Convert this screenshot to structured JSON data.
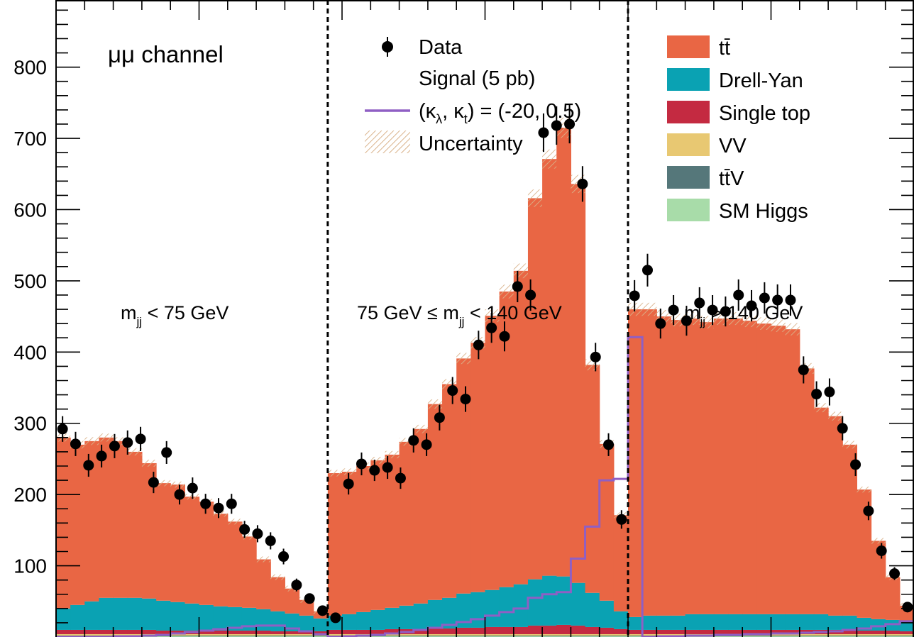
{
  "chart_data": {
    "type": "bar",
    "stacked": true,
    "title": "",
    "xlabel": "",
    "ylabel": "",
    "ylim": [
      0,
      880
    ],
    "yticks": [
      100,
      200,
      300,
      400,
      500,
      600,
      700,
      800
    ],
    "grid": false,
    "channel_label": "μμ channel",
    "regions": [
      {
        "label_main": "m",
        "label_sub": "jj",
        "label_rest": " < 75 GeV"
      },
      {
        "label_pre": "75 GeV ≤ m",
        "label_sub": "jj",
        "label_rest": " < 140 GeV"
      },
      {
        "label_main": "m",
        "label_sub": "jj",
        "label_rest": " > 140 GeV"
      }
    ],
    "legend": {
      "data": "Data",
      "signal_title": "Signal (5 pb)",
      "signal_line": "(κ_λ, κ_t) = (-20, 0.5)",
      "uncertainty": "Uncertainty",
      "backgrounds": [
        "tt̄",
        "Drell-Yan",
        "Single top",
        "VV",
        "tt̄V",
        "SM Higgs"
      ]
    },
    "colors": {
      "ttbar": "#e96644",
      "dy": "#0aa2b3",
      "singletop": "#c42a41",
      "vv": "#e8c872",
      "ttv": "#55777a",
      "higgs": "#a8dca9",
      "signal": "#8f5fc4",
      "uncertainty": "#d9b28a",
      "data": "#000000"
    },
    "series": [
      {
        "name": "tt̄",
        "values": [
          240,
          225,
          225,
          225,
          220,
          205,
          190,
          165,
          165,
          150,
          145,
          130,
          120,
          100,
          70,
          48,
          35,
          22,
          10,
          200,
          200,
          205,
          210,
          215,
          230,
          245,
          275,
          300,
          330,
          350,
          385,
          415,
          440,
          535,
          585,
          630,
          560,
          320,
          220,
          135,
          432,
          430,
          420,
          415,
          415,
          410,
          415,
          415,
          412,
          408,
          405,
          400,
          345,
          290,
          280,
          240,
          180,
          110,
          60,
          22
        ]
      },
      {
        "name": "Drell-Yan",
        "values": [
          30,
          35,
          40,
          45,
          45,
          45,
          44,
          42,
          40,
          38,
          36,
          34,
          33,
          32,
          30,
          28,
          25,
          22,
          18,
          20,
          22,
          25,
          28,
          30,
          33,
          36,
          40,
          43,
          48,
          50,
          52,
          56,
          60,
          65,
          70,
          68,
          60,
          48,
          38,
          25,
          18,
          20,
          20,
          20,
          22,
          22,
          22,
          22,
          22,
          22,
          22,
          22,
          22,
          22,
          20,
          20,
          18,
          16,
          15,
          14
        ]
      },
      {
        "name": "Single top",
        "values": [
          6,
          6,
          6,
          6,
          6,
          6,
          6,
          5,
          5,
          5,
          5,
          5,
          5,
          5,
          5,
          4,
          4,
          4,
          4,
          6,
          6,
          6,
          6,
          7,
          7,
          7,
          8,
          8,
          9,
          9,
          10,
          10,
          10,
          12,
          12,
          13,
          12,
          10,
          9,
          7,
          6,
          6,
          6,
          6,
          6,
          6,
          6,
          6,
          6,
          6,
          6,
          6,
          6,
          6,
          6,
          6,
          5,
          5,
          5,
          4
        ]
      },
      {
        "name": "VV",
        "values": [
          2,
          2,
          2,
          2,
          2,
          2,
          2,
          2,
          2,
          2,
          2,
          2,
          2,
          2,
          2,
          2,
          2,
          2,
          2,
          2,
          2,
          2,
          2,
          2,
          2,
          2,
          2,
          2,
          2,
          2,
          2,
          2,
          2,
          2,
          2,
          2,
          2,
          2,
          2,
          2,
          2,
          2,
          2,
          2,
          2,
          2,
          2,
          2,
          2,
          2,
          2,
          2,
          2,
          2,
          2,
          2,
          2,
          2,
          2,
          2
        ]
      },
      {
        "name": "tt̄V",
        "values": [
          1,
          1,
          1,
          1,
          1,
          1,
          1,
          1,
          1,
          1,
          1,
          1,
          1,
          1,
          1,
          1,
          1,
          1,
          1,
          1,
          1,
          1,
          1,
          1,
          1,
          1,
          1,
          1,
          1,
          1,
          1,
          1,
          1,
          1,
          1,
          1,
          1,
          1,
          1,
          1,
          1,
          1,
          1,
          1,
          1,
          1,
          1,
          1,
          1,
          1,
          1,
          1,
          1,
          1,
          1,
          1,
          1,
          1,
          1,
          1
        ]
      },
      {
        "name": "SM Higgs",
        "values": [
          1,
          1,
          1,
          1,
          1,
          1,
          1,
          1,
          1,
          1,
          1,
          1,
          1,
          1,
          1,
          1,
          1,
          1,
          1,
          1,
          1,
          1,
          1,
          1,
          1,
          1,
          1,
          1,
          1,
          1,
          1,
          1,
          1,
          1,
          1,
          1,
          1,
          1,
          1,
          1,
          1,
          1,
          1,
          1,
          1,
          1,
          1,
          1,
          1,
          1,
          1,
          1,
          1,
          1,
          1,
          1,
          1,
          1,
          1,
          1
        ]
      }
    ],
    "signal": [
      0,
      0,
      0,
      0,
      1,
      1,
      2,
      3,
      5,
      7,
      9,
      11,
      13,
      15,
      16,
      16,
      12,
      8,
      4,
      0,
      1,
      2,
      3,
      5,
      7,
      10,
      13,
      17,
      21,
      25,
      30,
      35,
      40,
      55,
      60,
      63,
      110,
      155,
      220,
      222,
      421,
      0,
      1,
      1,
      2,
      2,
      3,
      3,
      4,
      4,
      5,
      5,
      6,
      7,
      8,
      10,
      12,
      15,
      18,
      22
    ],
    "data_points": [
      {
        "x": 1,
        "y": 292,
        "err": 18
      },
      {
        "x": 2,
        "y": 271,
        "err": 17
      },
      {
        "x": 3,
        "y": 241,
        "err": 16
      },
      {
        "x": 4,
        "y": 254,
        "err": 16
      },
      {
        "x": 5,
        "y": 268,
        "err": 17
      },
      {
        "x": 6,
        "y": 273,
        "err": 17
      },
      {
        "x": 7,
        "y": 278,
        "err": 17
      },
      {
        "x": 8,
        "y": 217,
        "err": 15
      },
      {
        "x": 9,
        "y": 259,
        "err": 16
      },
      {
        "x": 10,
        "y": 200,
        "err": 14
      },
      {
        "x": 11,
        "y": 209,
        "err": 15
      },
      {
        "x": 12,
        "y": 187,
        "err": 14
      },
      {
        "x": 13,
        "y": 181,
        "err": 14
      },
      {
        "x": 14,
        "y": 187,
        "err": 14
      },
      {
        "x": 15,
        "y": 151,
        "err": 12
      },
      {
        "x": 16,
        "y": 145,
        "err": 12
      },
      {
        "x": 17,
        "y": 135,
        "err": 12
      },
      {
        "x": 18,
        "y": 113,
        "err": 11
      },
      {
        "x": 19,
        "y": 73,
        "err": 9
      },
      {
        "x": 20,
        "y": 54,
        "err": 7
      },
      {
        "x": 21,
        "y": 37,
        "err": 6
      },
      {
        "x": 22,
        "y": 27,
        "err": 5
      },
      {
        "x": 23,
        "y": 215,
        "err": 15
      },
      {
        "x": 24,
        "y": 243,
        "err": 16
      },
      {
        "x": 25,
        "y": 234,
        "err": 15
      },
      {
        "x": 26,
        "y": 238,
        "err": 16
      },
      {
        "x": 27,
        "y": 223,
        "err": 15
      },
      {
        "x": 28,
        "y": 276,
        "err": 17
      },
      {
        "x": 29,
        "y": 270,
        "err": 16
      },
      {
        "x": 30,
        "y": 308,
        "err": 18
      },
      {
        "x": 31,
        "y": 346,
        "err": 19
      },
      {
        "x": 32,
        "y": 334,
        "err": 18
      },
      {
        "x": 33,
        "y": 410,
        "err": 20
      },
      {
        "x": 34,
        "y": 434,
        "err": 21
      },
      {
        "x": 35,
        "y": 422,
        "err": 21
      },
      {
        "x": 36,
        "y": 492,
        "err": 22
      },
      {
        "x": 37,
        "y": 480,
        "err": 22
      },
      {
        "x": 38,
        "y": 708,
        "err": 27
      },
      {
        "x": 39,
        "y": 718,
        "err": 27
      },
      {
        "x": 40,
        "y": 720,
        "err": 27
      },
      {
        "x": 41,
        "y": 636,
        "err": 25
      },
      {
        "x": 42,
        "y": 393,
        "err": 20
      },
      {
        "x": 43,
        "y": 270,
        "err": 16
      },
      {
        "x": 44,
        "y": 165,
        "err": 13
      },
      {
        "x": 45,
        "y": 479,
        "err": 22
      },
      {
        "x": 46,
        "y": 515,
        "err": 23
      },
      {
        "x": 47,
        "y": 440,
        "err": 21
      },
      {
        "x": 48,
        "y": 459,
        "err": 21
      },
      {
        "x": 49,
        "y": 444,
        "err": 21
      },
      {
        "x": 50,
        "y": 469,
        "err": 22
      },
      {
        "x": 51,
        "y": 459,
        "err": 21
      },
      {
        "x": 52,
        "y": 457,
        "err": 21
      },
      {
        "x": 53,
        "y": 480,
        "err": 22
      },
      {
        "x": 54,
        "y": 465,
        "err": 22
      },
      {
        "x": 55,
        "y": 476,
        "err": 22
      },
      {
        "x": 56,
        "y": 473,
        "err": 22
      },
      {
        "x": 57,
        "y": 473,
        "err": 22
      },
      {
        "x": 58,
        "y": 375,
        "err": 19
      },
      {
        "x": 59,
        "y": 341,
        "err": 18
      },
      {
        "x": 60,
        "y": 344,
        "err": 19
      },
      {
        "x": 61,
        "y": 293,
        "err": 17
      },
      {
        "x": 62,
        "y": 242,
        "err": 16
      },
      {
        "x": 63,
        "y": 177,
        "err": 13
      },
      {
        "x": 64,
        "y": 121,
        "err": 11
      },
      {
        "x": 65,
        "y": 89,
        "err": 9
      },
      {
        "x": 66,
        "y": 42,
        "err": 6
      }
    ]
  }
}
